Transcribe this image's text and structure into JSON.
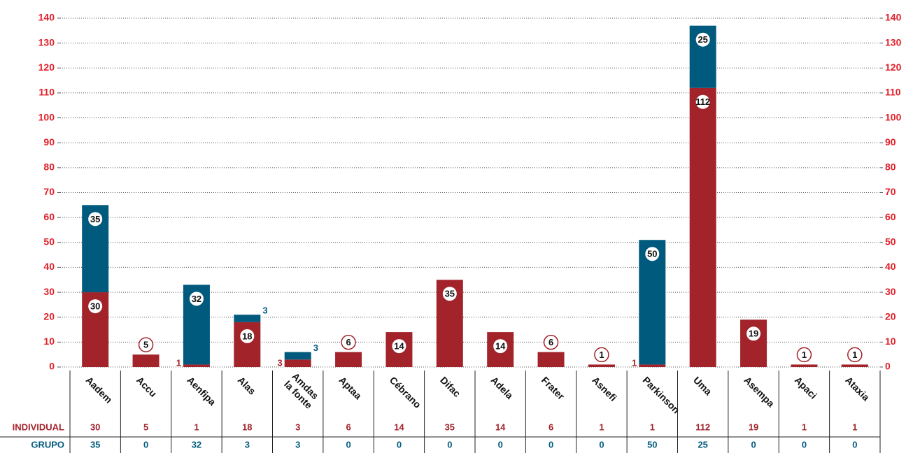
{
  "chart_data": {
    "type": "stacked_bar",
    "categories": [
      "Aadem",
      "Accu",
      "Aenfipa",
      "Alas",
      "Amdas la fonte",
      "Aptaa",
      "Cébrano",
      "Difac",
      "Adela",
      "Frater",
      "Asnefi",
      "Parkinson",
      "Uma",
      "Asempa",
      "Apaci",
      "Ataxia"
    ],
    "series": [
      {
        "name": "INDIVIDUAL",
        "color": "#a3232b",
        "values": [
          30,
          5,
          1,
          18,
          3,
          6,
          14,
          35,
          14,
          6,
          1,
          1,
          112,
          19,
          1,
          1
        ]
      },
      {
        "name": "GRUPO",
        "color": "#005a7e",
        "values": [
          35,
          0,
          32,
          3,
          3,
          0,
          0,
          0,
          0,
          0,
          0,
          50,
          25,
          0,
          0,
          0
        ]
      }
    ],
    "ylim": [
      0,
      140
    ],
    "yticks": [
      0,
      10,
      20,
      30,
      40,
      50,
      60,
      70,
      80,
      90,
      100,
      110,
      120,
      130,
      140
    ],
    "grid": true
  }
}
